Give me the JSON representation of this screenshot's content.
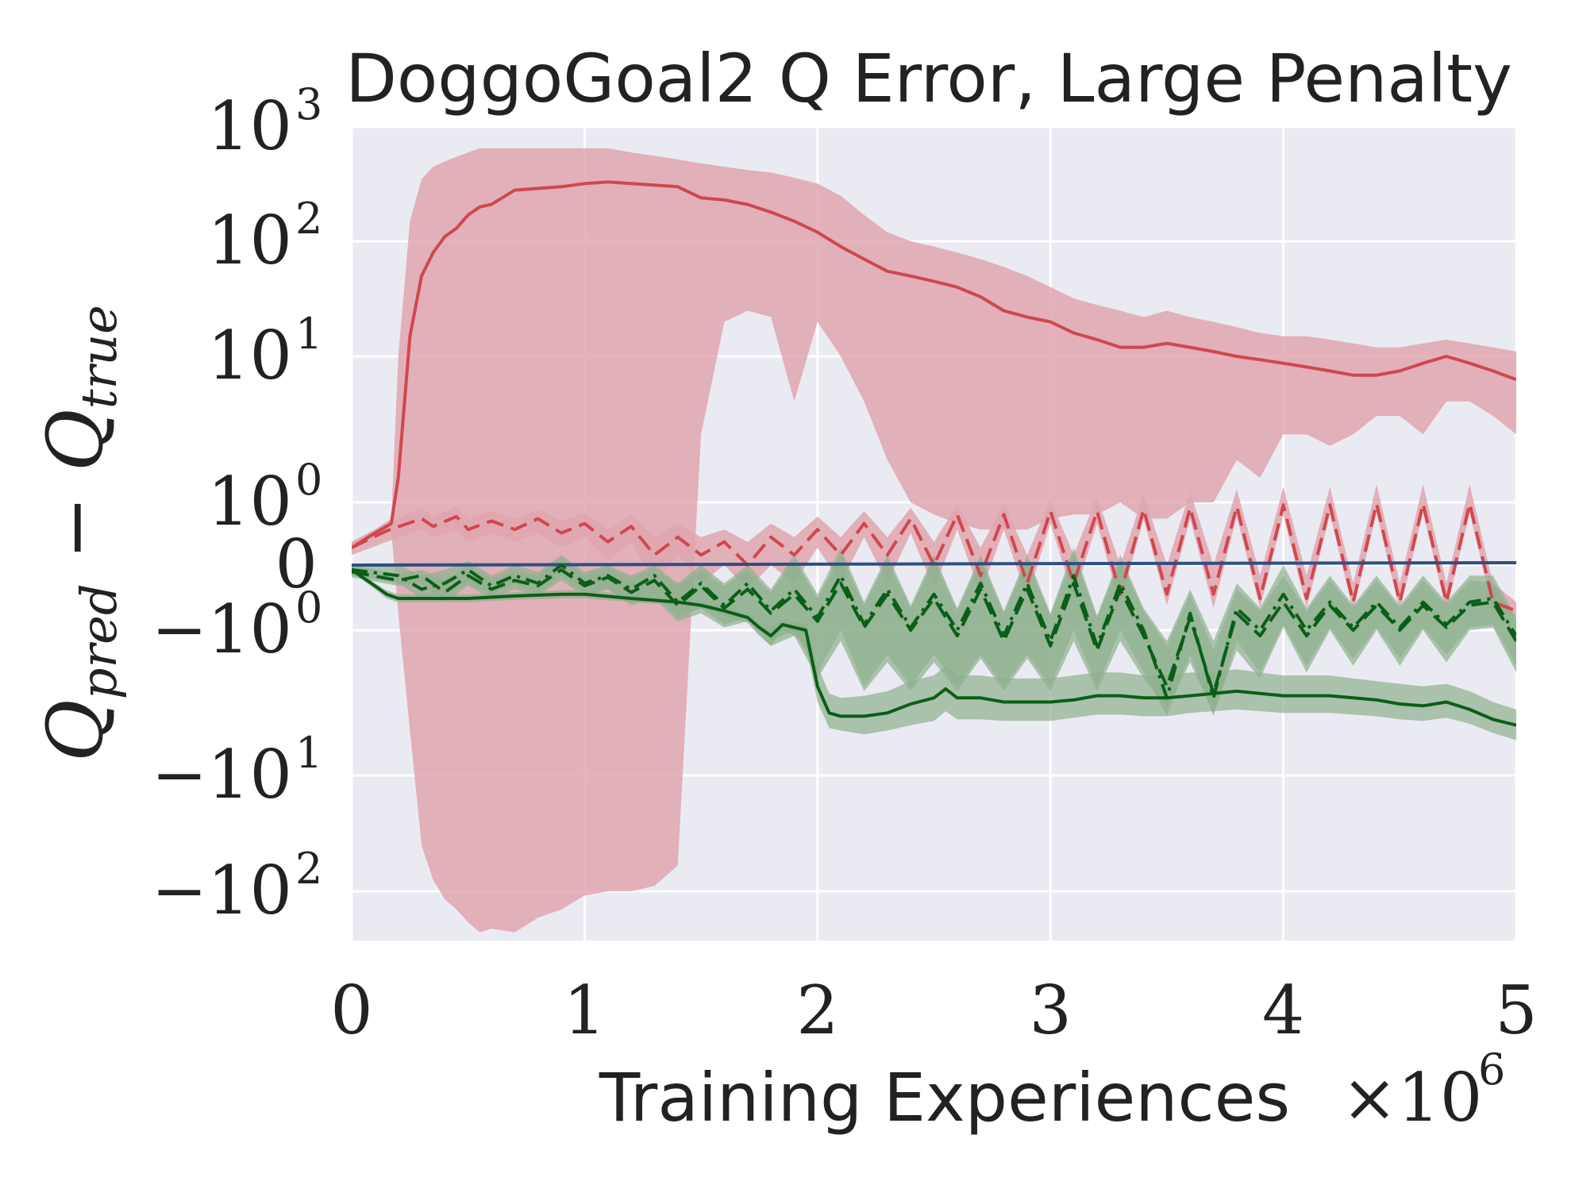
{
  "chart_data": {
    "type": "line",
    "title": "DoggoGoal2 Q Error, Large Penalty",
    "xlabel": "Training Experiences",
    "x_multiplier": "×10",
    "x_multiplier_exp": "6",
    "ylabel": {
      "base1": "Q",
      "sub1": "pred",
      "minus": " − ",
      "base2": "Q",
      "sub2": "true"
    },
    "yscale": "symlog",
    "xlim": [
      0,
      5
    ],
    "ylim": [
      -300,
      1000
    ],
    "x_ticks": [
      {
        "value": 0,
        "label": "0"
      },
      {
        "value": 1,
        "label": "1"
      },
      {
        "value": 2,
        "label": "2"
      },
      {
        "value": 3,
        "label": "3"
      },
      {
        "value": 4,
        "label": "4"
      },
      {
        "value": 5,
        "label": "5"
      }
    ],
    "y_ticks": [
      {
        "value": 1000,
        "base": "10",
        "exp": "3"
      },
      {
        "value": 100,
        "base": "10",
        "exp": "2"
      },
      {
        "value": 10,
        "base": "10",
        "exp": "1"
      },
      {
        "value": 1,
        "base": "10",
        "exp": "0"
      },
      {
        "value": 0,
        "base": "0",
        "exp": ""
      },
      {
        "value": -1,
        "base": "−10",
        "exp": "0"
      },
      {
        "value": -10,
        "base": "−10",
        "exp": "1"
      },
      {
        "value": -100,
        "base": "−10",
        "exp": "2"
      }
    ],
    "colors": {
      "red_line": "#d1474f",
      "red_band": "#e0a6af",
      "green_line": "#0b5e18",
      "green_band": "#8fb08f",
      "blue_line": "#2e4f82",
      "background": "#eaeaf2"
    },
    "series": [
      {
        "name": "red solid",
        "color": "#d1474f",
        "style": "solid",
        "band_color": "#e0a6af",
        "x": [
          0,
          0.1,
          0.17,
          0.2,
          0.25,
          0.3,
          0.35,
          0.4,
          0.45,
          0.5,
          0.55,
          0.6,
          0.7,
          0.8,
          0.9,
          1.0,
          1.1,
          1.2,
          1.3,
          1.4,
          1.5,
          1.6,
          1.7,
          1.8,
          1.9,
          2.0,
          2.1,
          2.2,
          2.3,
          2.4,
          2.5,
          2.6,
          2.7,
          2.8,
          2.9,
          3.0,
          3.1,
          3.2,
          3.3,
          3.4,
          3.5,
          3.6,
          3.7,
          3.8,
          3.9,
          4.0,
          4.1,
          4.2,
          4.3,
          4.4,
          4.5,
          4.6,
          4.7,
          4.8,
          4.9,
          5.0
        ],
        "y": [
          0.1,
          0.25,
          0.4,
          1.5,
          15,
          50,
          80,
          110,
          130,
          170,
          200,
          210,
          280,
          290,
          300,
          320,
          330,
          320,
          310,
          300,
          240,
          230,
          210,
          180,
          150,
          120,
          90,
          70,
          55,
          50,
          45,
          40,
          33,
          25,
          22,
          20,
          16,
          14,
          12,
          12,
          13,
          12,
          11,
          10,
          9.5,
          9,
          8.5,
          8,
          7.5,
          7.5,
          8,
          9,
          10,
          9,
          8,
          7
        ],
        "band_lower": [
          0.1,
          0.2,
          0.3,
          -0.5,
          -5,
          -40,
          -80,
          -120,
          -150,
          -200,
          -250,
          -230,
          -250,
          -180,
          -150,
          -110,
          -100,
          -100,
          -90,
          -60,
          3,
          20,
          25,
          22,
          5,
          20,
          10,
          5,
          2,
          1,
          0.6,
          0.4,
          0.3,
          0.3,
          0.3,
          0.5,
          0.6,
          0.6,
          1,
          0.5,
          0.5,
          1,
          1,
          2,
          1.5,
          3,
          3,
          2.5,
          3,
          4,
          4,
          3,
          5,
          5,
          4,
          3
        ],
        "band_upper": [
          0.15,
          0.3,
          0.5,
          10,
          150,
          350,
          450,
          500,
          550,
          600,
          650,
          650,
          650,
          650,
          650,
          650,
          650,
          600,
          560,
          520,
          480,
          450,
          420,
          400,
          360,
          320,
          250,
          170,
          120,
          100,
          90,
          80,
          70,
          60,
          50,
          40,
          32,
          28,
          25,
          22,
          25,
          22,
          20,
          18,
          16,
          15,
          15,
          14,
          13,
          12,
          12,
          13,
          14,
          13,
          12,
          11
        ]
      },
      {
        "name": "red dashed",
        "color": "#d1474f",
        "style": "dashed",
        "band_color": "#e0a6af",
        "x": [
          0,
          0.15,
          0.3,
          0.35,
          0.45,
          0.5,
          0.6,
          0.7,
          0.8,
          0.9,
          1.0,
          1.1,
          1.2,
          1.3,
          1.4,
          1.5,
          1.6,
          1.7,
          1.8,
          1.9,
          2.0,
          2.1,
          2.2,
          2.3,
          2.4,
          2.5,
          2.6,
          2.7,
          2.8,
          2.9,
          3.0,
          3.1,
          3.2,
          3.3,
          3.4,
          3.5,
          3.6,
          3.7,
          3.8,
          3.9,
          4.0,
          4.1,
          4.2,
          4.3,
          4.4,
          4.5,
          4.6,
          4.7,
          4.8,
          4.9,
          5.0
        ],
        "y": [
          0.1,
          0.28,
          0.5,
          0.35,
          0.55,
          0.3,
          0.45,
          0.3,
          0.5,
          0.25,
          0.4,
          0.15,
          0.35,
          0.05,
          0.2,
          0.05,
          0.15,
          0.0,
          0.2,
          0.05,
          0.3,
          0.05,
          0.4,
          0.05,
          0.5,
          0.0,
          0.6,
          -0.05,
          0.6,
          -0.1,
          0.7,
          -0.1,
          0.7,
          -0.2,
          0.75,
          -0.2,
          0.8,
          -0.2,
          0.85,
          -0.25,
          0.9,
          -0.25,
          0.9,
          -0.3,
          0.95,
          -0.3,
          0.95,
          -0.3,
          0.95,
          -0.3,
          -0.45
        ],
        "band_lower": [
          0.05,
          0.15,
          0.3,
          0.2,
          0.3,
          0.15,
          0.25,
          0.15,
          0.25,
          0.1,
          0.2,
          0.02,
          0.15,
          -0.1,
          0.05,
          -0.1,
          0.0,
          -0.15,
          0.0,
          -0.1,
          0.1,
          -0.1,
          0.2,
          -0.1,
          0.25,
          -0.15,
          0.3,
          -0.2,
          0.3,
          -0.25,
          0.4,
          -0.25,
          0.4,
          -0.35,
          0.5,
          -0.35,
          0.5,
          -0.4,
          0.55,
          -0.4,
          0.6,
          -0.4,
          0.6,
          -0.45,
          0.65,
          -0.45,
          0.65,
          -0.45,
          0.65,
          -0.45,
          -0.6
        ],
        "band_upper": [
          0.15,
          0.4,
          0.8,
          0.55,
          0.85,
          0.5,
          0.7,
          0.5,
          0.75,
          0.45,
          0.65,
          0.3,
          0.6,
          0.2,
          0.4,
          0.2,
          0.3,
          0.15,
          0.4,
          0.2,
          0.55,
          0.2,
          0.7,
          0.2,
          0.8,
          0.15,
          0.9,
          0.1,
          0.95,
          0.05,
          1.05,
          0.05,
          1.1,
          0.0,
          1.15,
          0.0,
          1.2,
          0.0,
          1.25,
          -0.05,
          1.3,
          -0.05,
          1.3,
          -0.1,
          1.35,
          -0.1,
          1.35,
          -0.1,
          1.35,
          -0.1,
          -0.3
        ]
      },
      {
        "name": "blue solid",
        "color": "#2e4f82",
        "style": "solid",
        "x": [
          0,
          5
        ],
        "y": [
          0.0,
          0.01
        ]
      },
      {
        "name": "green dash-dot",
        "color": "#0b5e18",
        "style": "dashdot",
        "band_color": "#8fb08f",
        "x": [
          0,
          0.2,
          0.3,
          0.4,
          0.5,
          0.6,
          0.7,
          0.8,
          0.9,
          1.0,
          1.1,
          1.2,
          1.3,
          1.4,
          1.5,
          1.6,
          1.7,
          1.8,
          1.9,
          2.0,
          2.1,
          2.2,
          2.3,
          2.4,
          2.5,
          2.6,
          2.7,
          2.8,
          2.9,
          3.0,
          3.1,
          3.2,
          3.3,
          3.4,
          3.5,
          3.6,
          3.7,
          3.8,
          3.9,
          4.0,
          4.1,
          4.2,
          4.3,
          4.4,
          4.5,
          4.6,
          4.7,
          4.8,
          4.9,
          5.0
        ],
        "y": [
          -0.02,
          -0.05,
          -0.15,
          -0.1,
          -0.02,
          -0.12,
          -0.05,
          -0.1,
          0.0,
          -0.1,
          -0.05,
          -0.15,
          -0.05,
          -0.3,
          -0.1,
          -0.35,
          -0.1,
          -0.45,
          -0.15,
          -0.6,
          -0.05,
          -0.8,
          -0.15,
          -0.9,
          -0.2,
          -1.0,
          -0.1,
          -1.1,
          -0.1,
          -1.2,
          -0.05,
          -1.3,
          -0.1,
          -1.0,
          -3.0,
          -0.5,
          -3.0,
          -0.4,
          -1.0,
          -0.2,
          -1.0,
          -0.3,
          -0.9,
          -0.3,
          -0.9,
          -0.3,
          -0.8,
          -0.3,
          -0.25,
          -1.1
        ],
        "band_lower": [
          -0.05,
          -0.1,
          -0.25,
          -0.2,
          -0.1,
          -0.2,
          -0.1,
          -0.2,
          -0.05,
          -0.2,
          -0.15,
          -0.3,
          -0.2,
          -0.6,
          -0.4,
          -0.8,
          -0.6,
          -1.2,
          -1.0,
          -2.0,
          -1.0,
          -2.5,
          -1.5,
          -2.5,
          -1.5,
          -2.5,
          -1.5,
          -2.5,
          -1.5,
          -2.5,
          -1.0,
          -2.5,
          -1.0,
          -2.0,
          -4.0,
          -1.5,
          -4.0,
          -1.2,
          -2.0,
          -0.8,
          -1.8,
          -0.9,
          -1.6,
          -0.9,
          -1.6,
          -0.9,
          -1.5,
          -0.9,
          -0.8,
          -1.8
        ],
        "band_upper": [
          0.0,
          0.0,
          -0.05,
          -0.02,
          0.02,
          -0.05,
          0.0,
          -0.03,
          0.05,
          -0.03,
          0.0,
          -0.05,
          0.0,
          -0.1,
          0.0,
          -0.1,
          0.0,
          -0.15,
          0.05,
          -0.2,
          0.1,
          -0.3,
          0.05,
          -0.35,
          0.05,
          -0.4,
          0.05,
          -0.45,
          0.05,
          -0.5,
          0.1,
          -0.55,
          0.05,
          -0.4,
          -1.2,
          -0.15,
          -1.2,
          -0.1,
          -0.4,
          0.0,
          -0.4,
          -0.05,
          -0.35,
          -0.05,
          -0.35,
          -0.05,
          -0.3,
          -0.05,
          -0.05,
          -0.6
        ]
      },
      {
        "name": "green dashed",
        "color": "#0b5e18",
        "style": "dashed",
        "band_color": "#8fb08f",
        "x": [
          0,
          0.2,
          0.3,
          0.4,
          0.5,
          0.6,
          0.7,
          0.8,
          0.9,
          1.0,
          1.1,
          1.2,
          1.3,
          1.4,
          1.5,
          1.6,
          1.7,
          1.8,
          1.9,
          2.0,
          2.1,
          2.2,
          2.3,
          2.4,
          2.5,
          2.6,
          2.7,
          2.8,
          2.9,
          3.0,
          3.1,
          3.2,
          3.3,
          3.4,
          3.5,
          3.6,
          3.7,
          3.8,
          3.9,
          4.0,
          4.1,
          4.2,
          4.3,
          4.4,
          4.5,
          4.6,
          4.7,
          4.8,
          4.9,
          5.0
        ],
        "y": [
          -0.03,
          -0.08,
          -0.05,
          -0.18,
          -0.05,
          -0.15,
          -0.08,
          -0.12,
          -0.02,
          -0.12,
          -0.06,
          -0.18,
          -0.08,
          -0.35,
          -0.12,
          -0.4,
          -0.15,
          -0.5,
          -0.2,
          -0.7,
          -0.1,
          -0.9,
          -0.2,
          -1.0,
          -0.25,
          -1.1,
          -0.15,
          -1.2,
          -0.15,
          -1.3,
          -0.1,
          -1.4,
          -0.15,
          -1.1,
          -2.5,
          -0.6,
          -2.8,
          -0.5,
          -1.1,
          -0.3,
          -1.1,
          -0.35,
          -1.0,
          -0.35,
          -1.0,
          -0.35,
          -0.9,
          -0.35,
          -0.3,
          -1.2
        ],
        "band_lower": [
          -0.06,
          -0.12,
          -0.1,
          -0.3,
          -0.12,
          -0.25,
          -0.15,
          -0.22,
          -0.08,
          -0.22,
          -0.15,
          -0.35,
          -0.25,
          -0.7,
          -0.5,
          -0.9,
          -0.7,
          -1.3,
          -1.1,
          -2.2,
          -1.2,
          -2.7,
          -1.7,
          -2.7,
          -1.7,
          -2.7,
          -1.6,
          -2.7,
          -1.6,
          -2.7,
          -1.2,
          -2.7,
          -1.2,
          -2.2,
          -3.5,
          -1.7,
          -3.8,
          -1.4,
          -2.2,
          -0.9,
          -2.0,
          -1.0,
          -1.8,
          -1.0,
          -1.8,
          -1.0,
          -1.7,
          -1.0,
          -0.9,
          -2.0
        ],
        "band_upper": [
          0.0,
          -0.04,
          -0.02,
          -0.08,
          0.0,
          -0.07,
          -0.02,
          -0.05,
          0.03,
          -0.05,
          -0.01,
          -0.07,
          -0.01,
          -0.12,
          -0.02,
          -0.12,
          -0.02,
          -0.18,
          0.02,
          -0.25,
          0.05,
          -0.35,
          0.02,
          -0.4,
          0.02,
          -0.45,
          0.02,
          -0.5,
          0.02,
          -0.55,
          0.05,
          -0.6,
          0.02,
          -0.45,
          -1.3,
          -0.2,
          -1.4,
          -0.15,
          -0.45,
          -0.05,
          -0.45,
          -0.08,
          -0.4,
          -0.08,
          -0.4,
          -0.08,
          -0.35,
          -0.08,
          -0.1,
          -0.65
        ]
      },
      {
        "name": "green solid",
        "color": "#0b5e18",
        "style": "solid",
        "band_color": "#8fb08f",
        "x": [
          0,
          0.1,
          0.15,
          0.2,
          0.3,
          0.5,
          0.7,
          0.9,
          1.0,
          1.2,
          1.4,
          1.5,
          1.6,
          1.7,
          1.75,
          1.8,
          1.85,
          1.9,
          1.95,
          2.0,
          2.05,
          2.1,
          2.2,
          2.3,
          2.4,
          2.5,
          2.55,
          2.6,
          2.7,
          2.8,
          2.9,
          3.0,
          3.1,
          3.2,
          3.3,
          3.4,
          3.5,
          3.6,
          3.7,
          3.8,
          3.9,
          4.0,
          4.1,
          4.2,
          4.3,
          4.4,
          4.5,
          4.6,
          4.7,
          4.8,
          4.9,
          5.0
        ],
        "y": [
          -0.02,
          -0.12,
          -0.2,
          -0.25,
          -0.25,
          -0.25,
          -0.22,
          -0.2,
          -0.2,
          -0.25,
          -0.3,
          -0.35,
          -0.45,
          -0.6,
          -0.9,
          -1.1,
          -0.8,
          -0.9,
          -1.0,
          -2.5,
          -3.8,
          -4.0,
          -4.0,
          -3.8,
          -3.3,
          -3.0,
          -2.6,
          -3.0,
          -3.0,
          -3.2,
          -3.2,
          -3.2,
          -3.1,
          -2.9,
          -2.9,
          -3.0,
          -3.0,
          -2.9,
          -2.8,
          -2.7,
          -2.8,
          -2.9,
          -2.9,
          -2.9,
          -3.0,
          -3.1,
          -3.3,
          -3.4,
          -3.2,
          -3.6,
          -4.2,
          -4.6
        ],
        "band_lower": [
          -0.03,
          -0.15,
          -0.25,
          -0.3,
          -0.3,
          -0.3,
          -0.27,
          -0.25,
          -0.25,
          -0.3,
          -0.35,
          -0.4,
          -0.55,
          -0.75,
          -1.1,
          -1.3,
          -1.0,
          -1.1,
          -1.3,
          -3.2,
          -4.8,
          -5.0,
          -5.3,
          -5.0,
          -4.6,
          -4.3,
          -3.7,
          -4.2,
          -4.2,
          -4.3,
          -4.3,
          -4.3,
          -4.1,
          -3.9,
          -3.9,
          -4.0,
          -4.0,
          -3.8,
          -3.7,
          -3.6,
          -3.7,
          -3.8,
          -3.8,
          -3.8,
          -3.9,
          -4.0,
          -4.2,
          -4.3,
          -4.1,
          -4.5,
          -5.2,
          -5.8
        ],
        "band_upper": [
          -0.01,
          -0.1,
          -0.16,
          -0.2,
          -0.2,
          -0.2,
          -0.18,
          -0.16,
          -0.16,
          -0.2,
          -0.25,
          -0.3,
          -0.38,
          -0.48,
          -0.72,
          -0.9,
          -0.65,
          -0.72,
          -0.8,
          -1.8,
          -2.8,
          -3.0,
          -2.9,
          -2.7,
          -2.3,
          -2.1,
          -1.8,
          -2.1,
          -2.1,
          -2.2,
          -2.2,
          -2.2,
          -2.1,
          -2.0,
          -2.0,
          -2.1,
          -2.1,
          -2.0,
          -2.0,
          -1.9,
          -2.0,
          -2.1,
          -2.1,
          -2.1,
          -2.2,
          -2.3,
          -2.4,
          -2.5,
          -2.4,
          -2.7,
          -3.2,
          -3.6
        ]
      }
    ]
  }
}
